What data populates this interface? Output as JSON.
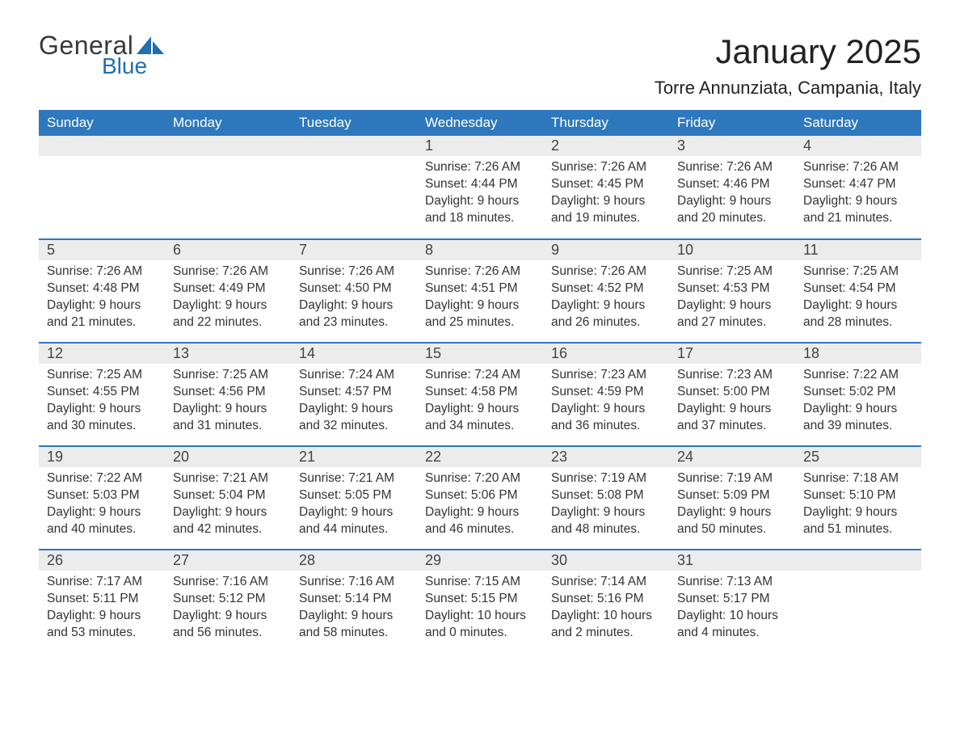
{
  "logo": {
    "text_general": "General",
    "text_blue": "Blue",
    "sail_color": "#1f6fb2"
  },
  "title": "January 2025",
  "location": "Torre Annunziata, Campania, Italy",
  "header_bg": "#2e78bd",
  "header_fg": "#ffffff",
  "daynum_bg": "#ececec",
  "rule_color": "#2e78bd",
  "weekdays": [
    "Sunday",
    "Monday",
    "Tuesday",
    "Wednesday",
    "Thursday",
    "Friday",
    "Saturday"
  ],
  "weeks": [
    [
      null,
      null,
      null,
      {
        "n": "1",
        "sunrise": "Sunrise: 7:26 AM",
        "sunset": "Sunset: 4:44 PM",
        "daylight": "Daylight: 9 hours and 18 minutes."
      },
      {
        "n": "2",
        "sunrise": "Sunrise: 7:26 AM",
        "sunset": "Sunset: 4:45 PM",
        "daylight": "Daylight: 9 hours and 19 minutes."
      },
      {
        "n": "3",
        "sunrise": "Sunrise: 7:26 AM",
        "sunset": "Sunset: 4:46 PM",
        "daylight": "Daylight: 9 hours and 20 minutes."
      },
      {
        "n": "4",
        "sunrise": "Sunrise: 7:26 AM",
        "sunset": "Sunset: 4:47 PM",
        "daylight": "Daylight: 9 hours and 21 minutes."
      }
    ],
    [
      {
        "n": "5",
        "sunrise": "Sunrise: 7:26 AM",
        "sunset": "Sunset: 4:48 PM",
        "daylight": "Daylight: 9 hours and 21 minutes."
      },
      {
        "n": "6",
        "sunrise": "Sunrise: 7:26 AM",
        "sunset": "Sunset: 4:49 PM",
        "daylight": "Daylight: 9 hours and 22 minutes."
      },
      {
        "n": "7",
        "sunrise": "Sunrise: 7:26 AM",
        "sunset": "Sunset: 4:50 PM",
        "daylight": "Daylight: 9 hours and 23 minutes."
      },
      {
        "n": "8",
        "sunrise": "Sunrise: 7:26 AM",
        "sunset": "Sunset: 4:51 PM",
        "daylight": "Daylight: 9 hours and 25 minutes."
      },
      {
        "n": "9",
        "sunrise": "Sunrise: 7:26 AM",
        "sunset": "Sunset: 4:52 PM",
        "daylight": "Daylight: 9 hours and 26 minutes."
      },
      {
        "n": "10",
        "sunrise": "Sunrise: 7:25 AM",
        "sunset": "Sunset: 4:53 PM",
        "daylight": "Daylight: 9 hours and 27 minutes."
      },
      {
        "n": "11",
        "sunrise": "Sunrise: 7:25 AM",
        "sunset": "Sunset: 4:54 PM",
        "daylight": "Daylight: 9 hours and 28 minutes."
      }
    ],
    [
      {
        "n": "12",
        "sunrise": "Sunrise: 7:25 AM",
        "sunset": "Sunset: 4:55 PM",
        "daylight": "Daylight: 9 hours and 30 minutes."
      },
      {
        "n": "13",
        "sunrise": "Sunrise: 7:25 AM",
        "sunset": "Sunset: 4:56 PM",
        "daylight": "Daylight: 9 hours and 31 minutes."
      },
      {
        "n": "14",
        "sunrise": "Sunrise: 7:24 AM",
        "sunset": "Sunset: 4:57 PM",
        "daylight": "Daylight: 9 hours and 32 minutes."
      },
      {
        "n": "15",
        "sunrise": "Sunrise: 7:24 AM",
        "sunset": "Sunset: 4:58 PM",
        "daylight": "Daylight: 9 hours and 34 minutes."
      },
      {
        "n": "16",
        "sunrise": "Sunrise: 7:23 AM",
        "sunset": "Sunset: 4:59 PM",
        "daylight": "Daylight: 9 hours and 36 minutes."
      },
      {
        "n": "17",
        "sunrise": "Sunrise: 7:23 AM",
        "sunset": "Sunset: 5:00 PM",
        "daylight": "Daylight: 9 hours and 37 minutes."
      },
      {
        "n": "18",
        "sunrise": "Sunrise: 7:22 AM",
        "sunset": "Sunset: 5:02 PM",
        "daylight": "Daylight: 9 hours and 39 minutes."
      }
    ],
    [
      {
        "n": "19",
        "sunrise": "Sunrise: 7:22 AM",
        "sunset": "Sunset: 5:03 PM",
        "daylight": "Daylight: 9 hours and 40 minutes."
      },
      {
        "n": "20",
        "sunrise": "Sunrise: 7:21 AM",
        "sunset": "Sunset: 5:04 PM",
        "daylight": "Daylight: 9 hours and 42 minutes."
      },
      {
        "n": "21",
        "sunrise": "Sunrise: 7:21 AM",
        "sunset": "Sunset: 5:05 PM",
        "daylight": "Daylight: 9 hours and 44 minutes."
      },
      {
        "n": "22",
        "sunrise": "Sunrise: 7:20 AM",
        "sunset": "Sunset: 5:06 PM",
        "daylight": "Daylight: 9 hours and 46 minutes."
      },
      {
        "n": "23",
        "sunrise": "Sunrise: 7:19 AM",
        "sunset": "Sunset: 5:08 PM",
        "daylight": "Daylight: 9 hours and 48 minutes."
      },
      {
        "n": "24",
        "sunrise": "Sunrise: 7:19 AM",
        "sunset": "Sunset: 5:09 PM",
        "daylight": "Daylight: 9 hours and 50 minutes."
      },
      {
        "n": "25",
        "sunrise": "Sunrise: 7:18 AM",
        "sunset": "Sunset: 5:10 PM",
        "daylight": "Daylight: 9 hours and 51 minutes."
      }
    ],
    [
      {
        "n": "26",
        "sunrise": "Sunrise: 7:17 AM",
        "sunset": "Sunset: 5:11 PM",
        "daylight": "Daylight: 9 hours and 53 minutes."
      },
      {
        "n": "27",
        "sunrise": "Sunrise: 7:16 AM",
        "sunset": "Sunset: 5:12 PM",
        "daylight": "Daylight: 9 hours and 56 minutes."
      },
      {
        "n": "28",
        "sunrise": "Sunrise: 7:16 AM",
        "sunset": "Sunset: 5:14 PM",
        "daylight": "Daylight: 9 hours and 58 minutes."
      },
      {
        "n": "29",
        "sunrise": "Sunrise: 7:15 AM",
        "sunset": "Sunset: 5:15 PM",
        "daylight": "Daylight: 10 hours and 0 minutes."
      },
      {
        "n": "30",
        "sunrise": "Sunrise: 7:14 AM",
        "sunset": "Sunset: 5:16 PM",
        "daylight": "Daylight: 10 hours and 2 minutes."
      },
      {
        "n": "31",
        "sunrise": "Sunrise: 7:13 AM",
        "sunset": "Sunset: 5:17 PM",
        "daylight": "Daylight: 10 hours and 4 minutes."
      },
      null
    ]
  ]
}
